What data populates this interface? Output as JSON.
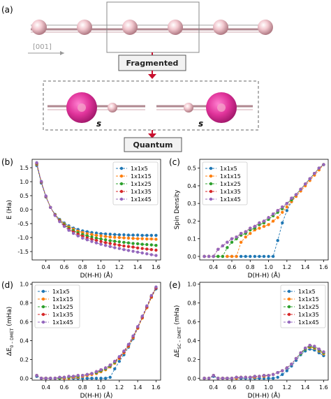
{
  "panel_a": {
    "label": "(a)",
    "direction_label": "[001]",
    "box1_label": "Fragmented",
    "box2_label": "Quantum",
    "s_label_left": "s",
    "s_label_right": "s"
  },
  "colors": {
    "series": [
      "#1f77b4",
      "#ff7f0e",
      "#2ca02c",
      "#d62728",
      "#9467bd"
    ],
    "atom_small": "#f0c0c8",
    "atom_big": "#e0339a",
    "box_fill": "#f2f2f2",
    "box_border": "#555555",
    "arrow": "#c8102e"
  },
  "chart_data": [
    {
      "panel": "(b)",
      "type": "line",
      "xlabel": "D(H-H) (Å)",
      "ylabel": "E (Ha)",
      "xlim": [
        0.25,
        1.65
      ],
      "ylim": [
        -1.8,
        1.8
      ],
      "xticks": [
        "0.4",
        "0.6",
        "0.8",
        "1.0",
        "1.2",
        "1.4",
        "1.6"
      ],
      "yticks": [
        "1.5",
        "1.0",
        "0.5",
        "0.0",
        "-0.5",
        "-1.0",
        "-1.5"
      ],
      "legend_position": "top-right",
      "x": [
        0.3,
        0.35,
        0.4,
        0.45,
        0.5,
        0.55,
        0.6,
        0.65,
        0.7,
        0.75,
        0.8,
        0.85,
        0.9,
        0.95,
        1.0,
        1.05,
        1.1,
        1.15,
        1.2,
        1.25,
        1.3,
        1.35,
        1.4,
        1.45,
        1.5,
        1.55,
        1.6
      ],
      "series": [
        {
          "name": "1x1x5",
          "values": [
            1.58,
            0.95,
            0.45,
            0.08,
            -0.17,
            -0.35,
            -0.48,
            -0.58,
            -0.66,
            -0.71,
            -0.76,
            -0.79,
            -0.82,
            -0.84,
            -0.86,
            -0.87,
            -0.88,
            -0.89,
            -0.9,
            -0.9,
            -0.91,
            -0.91,
            -0.91,
            -0.92,
            -0.92,
            -0.92,
            -0.92
          ]
        },
        {
          "name": "1x1x15",
          "values": [
            1.62,
            0.98,
            0.47,
            0.08,
            -0.18,
            -0.37,
            -0.51,
            -0.62,
            -0.7,
            -0.77,
            -0.82,
            -0.86,
            -0.89,
            -0.92,
            -0.94,
            -0.96,
            -0.98,
            -0.99,
            -1.0,
            -1.01,
            -1.02,
            -1.03,
            -1.04,
            -1.04,
            -1.05,
            -1.05,
            -1.06
          ]
        },
        {
          "name": "1x1x25",
          "values": [
            1.64,
            0.99,
            0.48,
            0.08,
            -0.19,
            -0.39,
            -0.54,
            -0.66,
            -0.75,
            -0.83,
            -0.89,
            -0.94,
            -0.98,
            -1.02,
            -1.05,
            -1.08,
            -1.11,
            -1.13,
            -1.15,
            -1.17,
            -1.19,
            -1.21,
            -1.22,
            -1.24,
            -1.25,
            -1.26,
            -1.28
          ]
        },
        {
          "name": "1x1x35",
          "values": [
            1.66,
            1.0,
            0.48,
            0.08,
            -0.2,
            -0.41,
            -0.57,
            -0.7,
            -0.8,
            -0.88,
            -0.95,
            -1.01,
            -1.06,
            -1.1,
            -1.14,
            -1.18,
            -1.21,
            -1.24,
            -1.27,
            -1.3,
            -1.32,
            -1.34,
            -1.37,
            -1.39,
            -1.41,
            -1.43,
            -1.45
          ]
        },
        {
          "name": "1x1x45",
          "values": [
            1.68,
            1.01,
            0.49,
            0.08,
            -0.21,
            -0.43,
            -0.6,
            -0.74,
            -0.85,
            -0.94,
            -1.02,
            -1.08,
            -1.14,
            -1.19,
            -1.24,
            -1.28,
            -1.32,
            -1.36,
            -1.39,
            -1.43,
            -1.46,
            -1.49,
            -1.52,
            -1.55,
            -1.58,
            -1.61,
            -1.64
          ]
        }
      ]
    },
    {
      "panel": "(c)",
      "type": "line",
      "xlabel": "D(H-H) (Å)",
      "ylabel": "Spin Density",
      "xlim": [
        0.25,
        1.65
      ],
      "ylim": [
        -0.02,
        0.55
      ],
      "xticks": [
        "0.4",
        "0.6",
        "0.8",
        "1.0",
        "1.2",
        "1.4",
        "1.6"
      ],
      "yticks": [
        "0.0",
        "0.1",
        "0.2",
        "0.3",
        "0.4",
        "0.5"
      ],
      "legend_position": "top-left",
      "x": [
        0.3,
        0.35,
        0.4,
        0.45,
        0.5,
        0.55,
        0.6,
        0.65,
        0.7,
        0.75,
        0.8,
        0.85,
        0.9,
        0.95,
        1.0,
        1.05,
        1.1,
        1.15,
        1.2,
        1.25,
        1.3,
        1.35,
        1.4,
        1.45,
        1.5,
        1.55,
        1.6
      ],
      "series": [
        {
          "name": "1x1x5",
          "values": [
            0,
            0,
            0,
            0,
            0,
            0,
            0,
            0,
            0,
            0,
            0,
            0,
            0,
            0,
            0,
            0,
            0.09,
            0.19,
            0.26,
            0.31,
            0.35,
            0.38,
            0.41,
            0.44,
            0.47,
            0.5,
            0.52
          ]
        },
        {
          "name": "1x1x15",
          "values": [
            0,
            0,
            0,
            0,
            0,
            0,
            0,
            0,
            0.08,
            0.11,
            0.13,
            0.15,
            0.16,
            0.17,
            0.18,
            0.2,
            0.22,
            0.25,
            0.28,
            0.31,
            0.34,
            0.37,
            0.4,
            0.43,
            0.46,
            0.49,
            0.52
          ]
        },
        {
          "name": "1x1x25",
          "values": [
            0,
            0,
            0,
            0,
            0,
            0.05,
            0.08,
            0.1,
            0.12,
            0.13,
            0.15,
            0.16,
            0.18,
            0.19,
            0.21,
            0.23,
            0.25,
            0.27,
            0.3,
            0.32,
            0.35,
            0.38,
            0.41,
            0.44,
            0.47,
            0.5,
            0.52
          ]
        },
        {
          "name": "1x1x35",
          "values": [
            0,
            0,
            0,
            0.04,
            0.06,
            0.08,
            0.1,
            0.11,
            0.13,
            0.14,
            0.16,
            0.17,
            0.19,
            0.2,
            0.22,
            0.24,
            0.26,
            0.28,
            0.3,
            0.33,
            0.35,
            0.38,
            0.41,
            0.44,
            0.47,
            0.5,
            0.52
          ]
        },
        {
          "name": "1x1x45",
          "values": [
            0,
            0,
            0,
            0.04,
            0.06,
            0.08,
            0.1,
            0.11,
            0.13,
            0.14,
            0.16,
            0.17,
            0.19,
            0.2,
            0.22,
            0.24,
            0.26,
            0.28,
            0.3,
            0.33,
            0.35,
            0.38,
            0.41,
            0.44,
            0.47,
            0.5,
            0.52
          ]
        }
      ]
    },
    {
      "panel": "(d)",
      "type": "line",
      "xlabel": "D(H-H) (Å)",
      "ylabel": "ΔE",
      "ylabel_sub": "0 – DMET",
      "ylabel_unit": " (mHa)",
      "xlim": [
        0.25,
        1.65
      ],
      "ylim": [
        -0.02,
        1.02
      ],
      "xticks": [
        "0.4",
        "0.6",
        "0.8",
        "1.0",
        "1.2",
        "1.4",
        "1.6"
      ],
      "yticks": [
        "0.0",
        "0.2",
        "0.4",
        "0.6",
        "0.8",
        "1.0"
      ],
      "legend_position": "top-left",
      "x": [
        0.3,
        0.35,
        0.4,
        0.45,
        0.5,
        0.55,
        0.6,
        0.65,
        0.7,
        0.75,
        0.8,
        0.85,
        0.9,
        0.95,
        1.0,
        1.05,
        1.1,
        1.15,
        1.2,
        1.25,
        1.3,
        1.35,
        1.4,
        1.45,
        1.5,
        1.55,
        1.6
      ],
      "series": [
        {
          "name": "1x1x5",
          "values": [
            0.02,
            0.0,
            0.0,
            0.0,
            0.0,
            0.0,
            0.0,
            0.0,
            0.0,
            0.0,
            0.0,
            0.0,
            0.0,
            0.0,
            0.0,
            0.0,
            0.01,
            0.1,
            0.18,
            0.25,
            0.33,
            0.42,
            0.53,
            0.64,
            0.75,
            0.86,
            0.95
          ]
        },
        {
          "name": "1x1x15",
          "values": [
            0.03,
            0.0,
            0.0,
            0.0,
            0.0,
            0.0,
            0.0,
            0.0,
            0.01,
            0.01,
            0.02,
            0.03,
            0.04,
            0.05,
            0.07,
            0.09,
            0.12,
            0.16,
            0.21,
            0.27,
            0.34,
            0.43,
            0.53,
            0.64,
            0.75,
            0.86,
            0.96
          ]
        },
        {
          "name": "1x1x25",
          "values": [
            0.03,
            0.0,
            0.0,
            0.0,
            0.0,
            0.0,
            0.01,
            0.01,
            0.02,
            0.02,
            0.03,
            0.04,
            0.05,
            0.06,
            0.08,
            0.1,
            0.13,
            0.17,
            0.22,
            0.28,
            0.35,
            0.44,
            0.54,
            0.65,
            0.76,
            0.87,
            0.96
          ]
        },
        {
          "name": "1x1x35",
          "values": [
            0.03,
            0.0,
            0.0,
            0.0,
            0.0,
            0.01,
            0.01,
            0.02,
            0.02,
            0.03,
            0.03,
            0.04,
            0.05,
            0.07,
            0.09,
            0.11,
            0.14,
            0.18,
            0.22,
            0.28,
            0.35,
            0.44,
            0.54,
            0.65,
            0.76,
            0.87,
            0.96
          ]
        },
        {
          "name": "1x1x45",
          "values": [
            0.03,
            0.0,
            0.0,
            0.0,
            0.0,
            0.01,
            0.01,
            0.02,
            0.02,
            0.03,
            0.03,
            0.04,
            0.05,
            0.07,
            0.09,
            0.11,
            0.14,
            0.18,
            0.23,
            0.29,
            0.36,
            0.45,
            0.55,
            0.66,
            0.77,
            0.88,
            0.97
          ]
        }
      ]
    },
    {
      "panel": "(e)",
      "type": "line",
      "xlabel": "D(H-H) (Å)",
      "ylabel": "ΔE",
      "ylabel_sub": "SC – DMET",
      "ylabel_unit": " (mHa)",
      "xlim": [
        0.25,
        1.65
      ],
      "ylim": [
        -0.02,
        1.02
      ],
      "xticks": [
        "0.4",
        "0.6",
        "0.8",
        "1.0",
        "1.2",
        "1.4",
        "1.6"
      ],
      "yticks": [
        "0.0",
        "0.2",
        "0.4",
        "0.6",
        "0.8",
        "1.0"
      ],
      "legend_position": "top-right",
      "x": [
        0.3,
        0.35,
        0.4,
        0.45,
        0.5,
        0.55,
        0.6,
        0.65,
        0.7,
        0.75,
        0.8,
        0.85,
        0.9,
        0.95,
        1.0,
        1.05,
        1.1,
        1.15,
        1.2,
        1.25,
        1.3,
        1.35,
        1.4,
        1.45,
        1.5,
        1.55,
        1.6
      ],
      "series": [
        {
          "name": "1x1x5",
          "values": [
            0.0,
            0.0,
            0.02,
            0.0,
            0.0,
            0.0,
            0.0,
            0.0,
            0.0,
            0.0,
            0.0,
            0.0,
            0.0,
            0.0,
            0.0,
            0.0,
            0.01,
            0.04,
            0.08,
            0.13,
            0.19,
            0.25,
            0.29,
            0.31,
            0.3,
            0.27,
            0.24
          ]
        },
        {
          "name": "1x1x15",
          "values": [
            0.0,
            0.0,
            0.03,
            0.0,
            0.0,
            0.0,
            0.0,
            0.0,
            0.01,
            0.01,
            0.01,
            0.01,
            0.02,
            0.02,
            0.03,
            0.04,
            0.06,
            0.08,
            0.11,
            0.15,
            0.21,
            0.26,
            0.31,
            0.33,
            0.32,
            0.29,
            0.26
          ]
        },
        {
          "name": "1x1x25",
          "values": [
            0.0,
            0.0,
            0.03,
            0.0,
            0.0,
            0.0,
            0.0,
            0.01,
            0.01,
            0.01,
            0.01,
            0.02,
            0.02,
            0.03,
            0.03,
            0.04,
            0.06,
            0.08,
            0.11,
            0.15,
            0.21,
            0.26,
            0.31,
            0.34,
            0.33,
            0.3,
            0.27
          ]
        },
        {
          "name": "1x1x35",
          "values": [
            0.0,
            0.0,
            0.03,
            0.0,
            0.0,
            0.0,
            0.0,
            0.01,
            0.01,
            0.01,
            0.01,
            0.02,
            0.02,
            0.03,
            0.03,
            0.04,
            0.06,
            0.08,
            0.11,
            0.15,
            0.21,
            0.27,
            0.32,
            0.35,
            0.34,
            0.31,
            0.28
          ]
        },
        {
          "name": "1x1x45",
          "values": [
            0.0,
            0.0,
            0.03,
            0.0,
            0.0,
            0.0,
            0.0,
            0.01,
            0.01,
            0.01,
            0.01,
            0.02,
            0.02,
            0.03,
            0.03,
            0.04,
            0.06,
            0.08,
            0.11,
            0.15,
            0.21,
            0.27,
            0.32,
            0.35,
            0.34,
            0.31,
            0.28
          ]
        }
      ]
    }
  ]
}
